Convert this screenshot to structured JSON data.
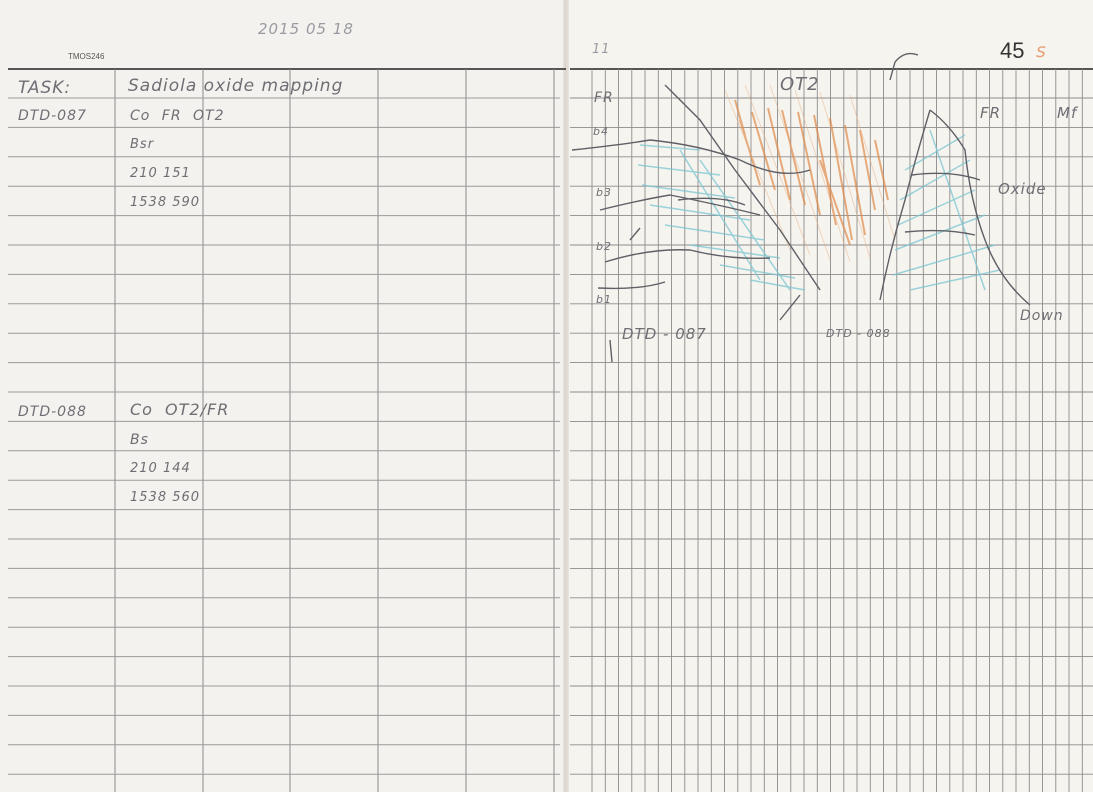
{
  "header": {
    "date": "2015 05 18",
    "code": "TMOS246",
    "page_number": "45",
    "page_suffix": "s",
    "margin_mark": "11"
  },
  "left_page": {
    "task_label": "TASK:",
    "task_text": "Sadiola oxide mapping",
    "entries": [
      {
        "hole": "DTD-087",
        "row1": "Co  FR OT2",
        "row2": "Bsr",
        "row3": "210 151",
        "row4": "1538 590"
      },
      {
        "hole": "DTD-088",
        "row1": "Co  OT2/FR",
        "row2": "Bs",
        "row3": "210 144",
        "row4": "1538 560"
      }
    ]
  },
  "sketch": {
    "zone_label_center": "OT2",
    "zone_label_left": "FR",
    "zone_label_right": "FR",
    "corner_label": "Mf",
    "oxide_label": "Oxide",
    "bench_labels": [
      "b4",
      "b3",
      "b2",
      "b1"
    ],
    "hole_label_1": "DTD - 087",
    "hole_label_2": "DTD - 088",
    "direction_label": "Down",
    "colors": {
      "orange": "#e08a4a",
      "cyan": "#7cc6d2",
      "pencil": "#5f5f66"
    }
  }
}
